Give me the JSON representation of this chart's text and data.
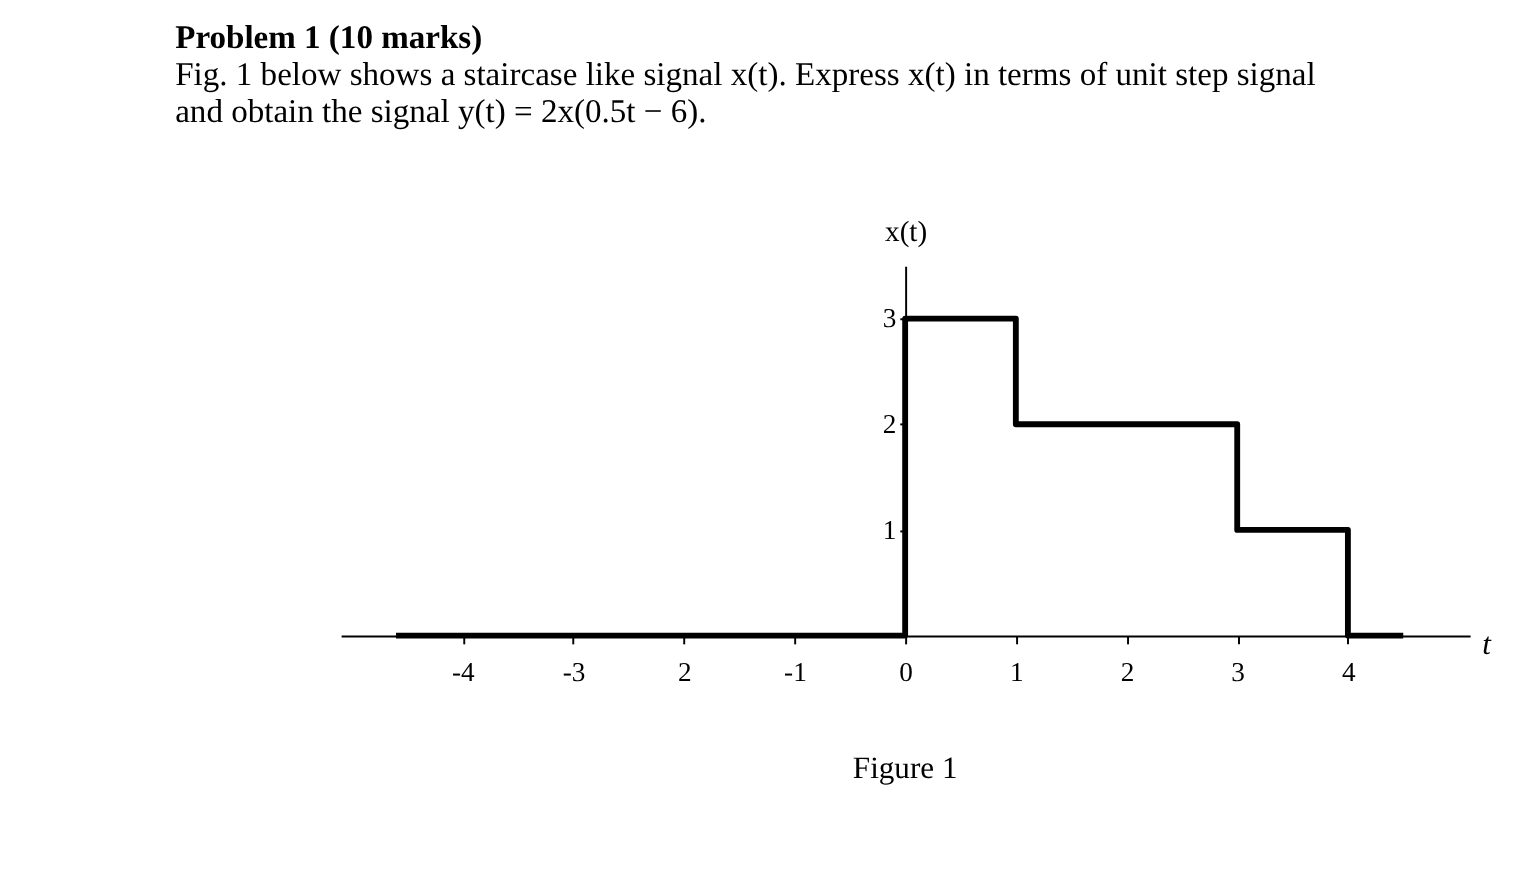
{
  "chart_data": {
    "type": "step",
    "title": "Problem 1 (10 marks)",
    "subtitle": [
      "Fig. 1 below shows a staircase like signal x(t). Express x(t) in terms of unit step signal",
      "and obtain the signal y(t) = 2x(0.5t − 6)."
    ],
    "xlabel": "t",
    "ylabel": "x(t)",
    "annotations": [
      "Figure 1"
    ],
    "x": [
      -4.6,
      0,
      1,
      3,
      4,
      4.5
    ],
    "series": [
      {
        "color": "#000000",
        "values": [
          0,
          3,
          2,
          1,
          0,
          0
        ]
      }
    ],
    "xlim": [
      -5.1,
      5.1
    ],
    "ylim": [
      0,
      3.5
    ],
    "xticks": [
      -4,
      -3,
      {
        "value": -2,
        "label": "2"
      },
      -1,
      0,
      1,
      2,
      3,
      4
    ],
    "yticks": [
      1,
      2,
      3
    ],
    "grid": false,
    "marker": "none",
    "line_style": "solid"
  }
}
